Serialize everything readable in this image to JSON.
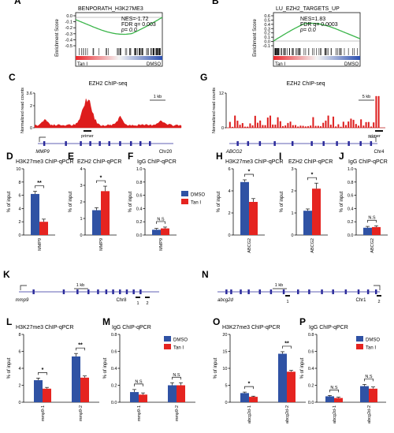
{
  "colors": {
    "dmso": "#2f52a4",
    "tan": "#e52420",
    "chip": "#dd1c1c",
    "gsea_line": "#3bb54a",
    "gene": "#2c2c9c",
    "black": "#111111"
  },
  "gsea": [
    {
      "panel": "A",
      "title": "BENPORATH_H3K27ME3",
      "ylabel": "Enrichment Score",
      "stats": [
        "NES=-1.72",
        "FDR q= 0.003",
        "p= 0.0"
      ],
      "ticks": [
        "0.0",
        "-0.1",
        "-0.2",
        "-0.3",
        "-0.4",
        "-0.5"
      ],
      "left_label": "Tan I",
      "right_label": "DMSO"
    },
    {
      "panel": "B",
      "title": "LU_EZH2_TARGETS_UP",
      "ylabel": "Enrichment Score",
      "stats": [
        "NES=1.83",
        "FDR q= 0.0003",
        "p= 0.0"
      ],
      "ticks": [
        "0.6",
        "0.5",
        "0.4",
        "0.3",
        "0.2",
        "0.1",
        "0.0",
        "-0.1"
      ],
      "left_label": "Tan I",
      "right_label": "DMSO"
    }
  ],
  "chip_tracks": [
    {
      "panel": "C",
      "title": "EZH2 ChIP-seq",
      "ylabel": "Normalized read counts",
      "ticks": [
        "3.6",
        "2",
        "0"
      ],
      "scale": "1 kb",
      "primer": "primer",
      "gene": "MMP9",
      "chr": "Chr20"
    },
    {
      "panel": "G",
      "title": "EZH2 ChIP-seq",
      "ylabel": "Normalized read counts",
      "ticks": [
        "12",
        "0"
      ],
      "scale": "5 kb",
      "primer": "primer",
      "gene": "ABCG2",
      "chr": "Chr4"
    }
  ],
  "gene_maps": [
    {
      "panel": "K",
      "scale": "1 kb",
      "gene": "mmp9",
      "chr": "Chr8",
      "p1": "1",
      "p2": "2"
    },
    {
      "panel": "N",
      "scale": "1 kb",
      "gene": "abcg2d",
      "chr": "Chr1",
      "p1": "1",
      "p2": "2"
    }
  ],
  "chart_data": [
    {
      "panel": "D",
      "type": "bar",
      "title": "H3K27me3 ChIP-qPCR",
      "ylabel": "% of input",
      "categories": [
        "MMP9"
      ],
      "ylim": [
        0,
        10
      ],
      "yticks": [
        0,
        2,
        4,
        6,
        8,
        10
      ],
      "series": [
        {
          "name": "DMSO",
          "values": [
            6.2
          ],
          "errors": [
            0.4
          ]
        },
        {
          "name": "Tan I",
          "values": [
            2.0
          ],
          "errors": [
            0.4
          ]
        }
      ],
      "annotations": [
        {
          "label": "**",
          "between": [
            0,
            1
          ]
        }
      ]
    },
    {
      "panel": "E",
      "type": "bar",
      "title": "EZH2 ChIP-qPCR",
      "ylabel": "% of input",
      "categories": [
        "MMP9"
      ],
      "ylim": [
        0,
        4
      ],
      "yticks": [
        0,
        1,
        2,
        3,
        4
      ],
      "series": [
        {
          "name": "DMSO",
          "values": [
            1.5
          ],
          "errors": [
            0.15
          ]
        },
        {
          "name": "Tan I",
          "values": [
            2.65
          ],
          "errors": [
            0.3
          ]
        }
      ],
      "annotations": [
        {
          "label": "*",
          "between": [
            0,
            1
          ]
        }
      ]
    },
    {
      "panel": "F",
      "type": "bar",
      "title": "IgG ChIP-qPCR",
      "ylabel": "% of input",
      "categories": [
        "MMP9"
      ],
      "ylim": [
        0,
        1.0
      ],
      "yticks": [
        0.0,
        0.2,
        0.4,
        0.6,
        0.8,
        1.0
      ],
      "series": [
        {
          "name": "DMSO",
          "values": [
            0.08
          ],
          "errors": [
            0.02
          ]
        },
        {
          "name": "Tan I",
          "values": [
            0.1
          ],
          "errors": [
            0.02
          ]
        }
      ],
      "annotations": [
        {
          "label": "N.S",
          "between": [
            0,
            1
          ]
        }
      ],
      "legend": [
        "DMSO",
        "Tan I"
      ]
    },
    {
      "panel": "H",
      "type": "bar",
      "title": "H3K27me3 ChIP-qPCR",
      "ylabel": "% of input",
      "categories": [
        "ABCG2"
      ],
      "ylim": [
        0,
        6
      ],
      "yticks": [
        0,
        2,
        4,
        6
      ],
      "series": [
        {
          "name": "DMSO",
          "values": [
            4.8
          ],
          "errors": [
            0.2
          ]
        },
        {
          "name": "Tan I",
          "values": [
            3.0
          ],
          "errors": [
            0.3
          ]
        }
      ],
      "annotations": [
        {
          "label": "*",
          "between": [
            0,
            1
          ]
        }
      ]
    },
    {
      "panel": "I",
      "type": "bar",
      "title": "EZH2 ChIP-qPCR",
      "ylabel": "% of input",
      "categories": [
        "ABCG2"
      ],
      "ylim": [
        0,
        3
      ],
      "yticks": [
        0,
        1,
        2,
        3
      ],
      "series": [
        {
          "name": "DMSO",
          "values": [
            1.1
          ],
          "errors": [
            0.08
          ]
        },
        {
          "name": "Tan I",
          "values": [
            2.1
          ],
          "errors": [
            0.25
          ]
        }
      ],
      "annotations": [
        {
          "label": "*",
          "between": [
            0,
            1
          ]
        }
      ]
    },
    {
      "panel": "J",
      "type": "bar",
      "title": "IgG ChIP-qPCR",
      "ylabel": "% of input",
      "categories": [
        "ABCG2"
      ],
      "ylim": [
        0,
        1.0
      ],
      "yticks": [
        0.0,
        0.2,
        0.4,
        0.6,
        0.8,
        1.0
      ],
      "series": [
        {
          "name": "DMSO",
          "values": [
            0.11
          ],
          "errors": [
            0.02
          ]
        },
        {
          "name": "Tan I",
          "values": [
            0.12
          ],
          "errors": [
            0.02
          ]
        }
      ],
      "annotations": [
        {
          "label": "N.S",
          "between": [
            0,
            1
          ]
        }
      ]
    },
    {
      "panel": "L",
      "type": "bar",
      "title": "H3K27me3 ChIP-qPCR",
      "ylabel": "% of input",
      "categories": [
        "mmp9-1",
        "mmp9-2"
      ],
      "ylim": [
        0,
        8
      ],
      "yticks": [
        0,
        2,
        4,
        6,
        8
      ],
      "series": [
        {
          "name": "DMSO",
          "values": [
            2.6,
            5.4
          ],
          "errors": [
            0.25,
            0.35
          ]
        },
        {
          "name": "Tan I",
          "values": [
            1.6,
            2.9
          ],
          "errors": [
            0.15,
            0.2
          ]
        }
      ],
      "annotations": [
        {
          "label": "*",
          "group": 0
        },
        {
          "label": "**",
          "group": 1
        }
      ]
    },
    {
      "panel": "M",
      "type": "bar",
      "title": "IgG ChIP-qPCR",
      "ylabel": "% of input",
      "categories": [
        "mmp9-1",
        "mmp9-2"
      ],
      "ylim": [
        0,
        0.8
      ],
      "yticks": [
        0.0,
        0.2,
        0.4,
        0.6,
        0.8
      ],
      "series": [
        {
          "name": "DMSO",
          "values": [
            0.12,
            0.2
          ],
          "errors": [
            0.03,
            0.03
          ]
        },
        {
          "name": "Tan I",
          "values": [
            0.09,
            0.2
          ],
          "errors": [
            0.02,
            0.03
          ]
        }
      ],
      "annotations": [
        {
          "label": "N.S",
          "group": 0
        },
        {
          "label": "N.S",
          "group": 1
        }
      ],
      "legend": [
        "DMSO",
        "Tan I"
      ]
    },
    {
      "panel": "O",
      "type": "bar",
      "title": "H3K27me3 ChIP-qPCR",
      "ylabel": "% of input",
      "categories": [
        "abcg2d-1",
        "abcg2d-2"
      ],
      "ylim": [
        0,
        20
      ],
      "yticks": [
        0,
        5,
        10,
        15,
        20
      ],
      "series": [
        {
          "name": "DMSO",
          "values": [
            2.7,
            14.3
          ],
          "errors": [
            0.3,
            0.6
          ]
        },
        {
          "name": "Tan I",
          "values": [
            1.6,
            9.0
          ],
          "errors": [
            0.2,
            0.4
          ]
        }
      ],
      "annotations": [
        {
          "label": "*",
          "group": 0
        },
        {
          "label": "**",
          "group": 1
        }
      ]
    },
    {
      "panel": "P",
      "type": "bar",
      "title": "IgG ChIP-qPCR",
      "ylabel": "% of input",
      "categories": [
        "abcg2d-1",
        "abcg2d-2"
      ],
      "ylim": [
        0,
        0.8
      ],
      "yticks": [
        0.0,
        0.2,
        0.4,
        0.6,
        0.8
      ],
      "series": [
        {
          "name": "DMSO",
          "values": [
            0.07,
            0.19
          ],
          "errors": [
            0.01,
            0.02
          ]
        },
        {
          "name": "Tan I",
          "values": [
            0.05,
            0.16
          ],
          "errors": [
            0.01,
            0.02
          ]
        }
      ],
      "annotations": [
        {
          "label": "N.S",
          "group": 0
        },
        {
          "label": "N.S",
          "group": 1
        }
      ],
      "legend": [
        "DMSO",
        "Tan I"
      ]
    }
  ]
}
